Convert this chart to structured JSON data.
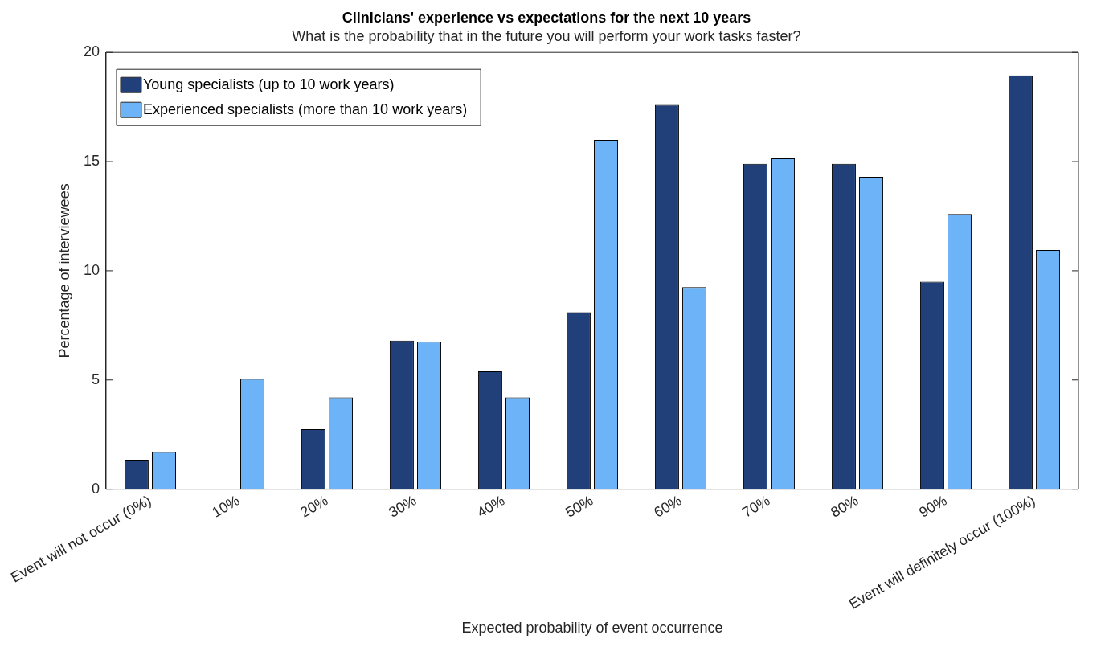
{
  "chart_data": {
    "type": "bar",
    "title": "Clinicians' experience vs expectations for the next 10 years",
    "subtitle": "What is the probability that in the future you will perform your work tasks faster?",
    "xlabel": "Expected probability of event occurrence",
    "ylabel": "Percentage of interviewees",
    "categories": [
      "Event will not occur (0%)",
      "10%",
      "20%",
      "30%",
      "40%",
      "50%",
      "60%",
      "70%",
      "80%",
      "90%",
      "Event will definitely occur (100%)"
    ],
    "series": [
      {
        "name": "Young specialists (up to 10 work years)",
        "color": "#21407a",
        "values": [
          1.35,
          0,
          2.75,
          6.8,
          5.4,
          8.1,
          17.6,
          14.9,
          14.9,
          9.5,
          18.95
        ]
      },
      {
        "name": "Experienced specialists (more than 10 work years)",
        "color": "#6cb3f8",
        "values": [
          1.7,
          5.05,
          4.2,
          6.75,
          4.2,
          16.0,
          9.25,
          15.15,
          14.3,
          12.6,
          10.95
        ]
      }
    ],
    "ylim": [
      0,
      20
    ],
    "yticks": [
      0,
      5,
      10,
      15,
      20
    ],
    "grid": false,
    "legend": "top left"
  }
}
